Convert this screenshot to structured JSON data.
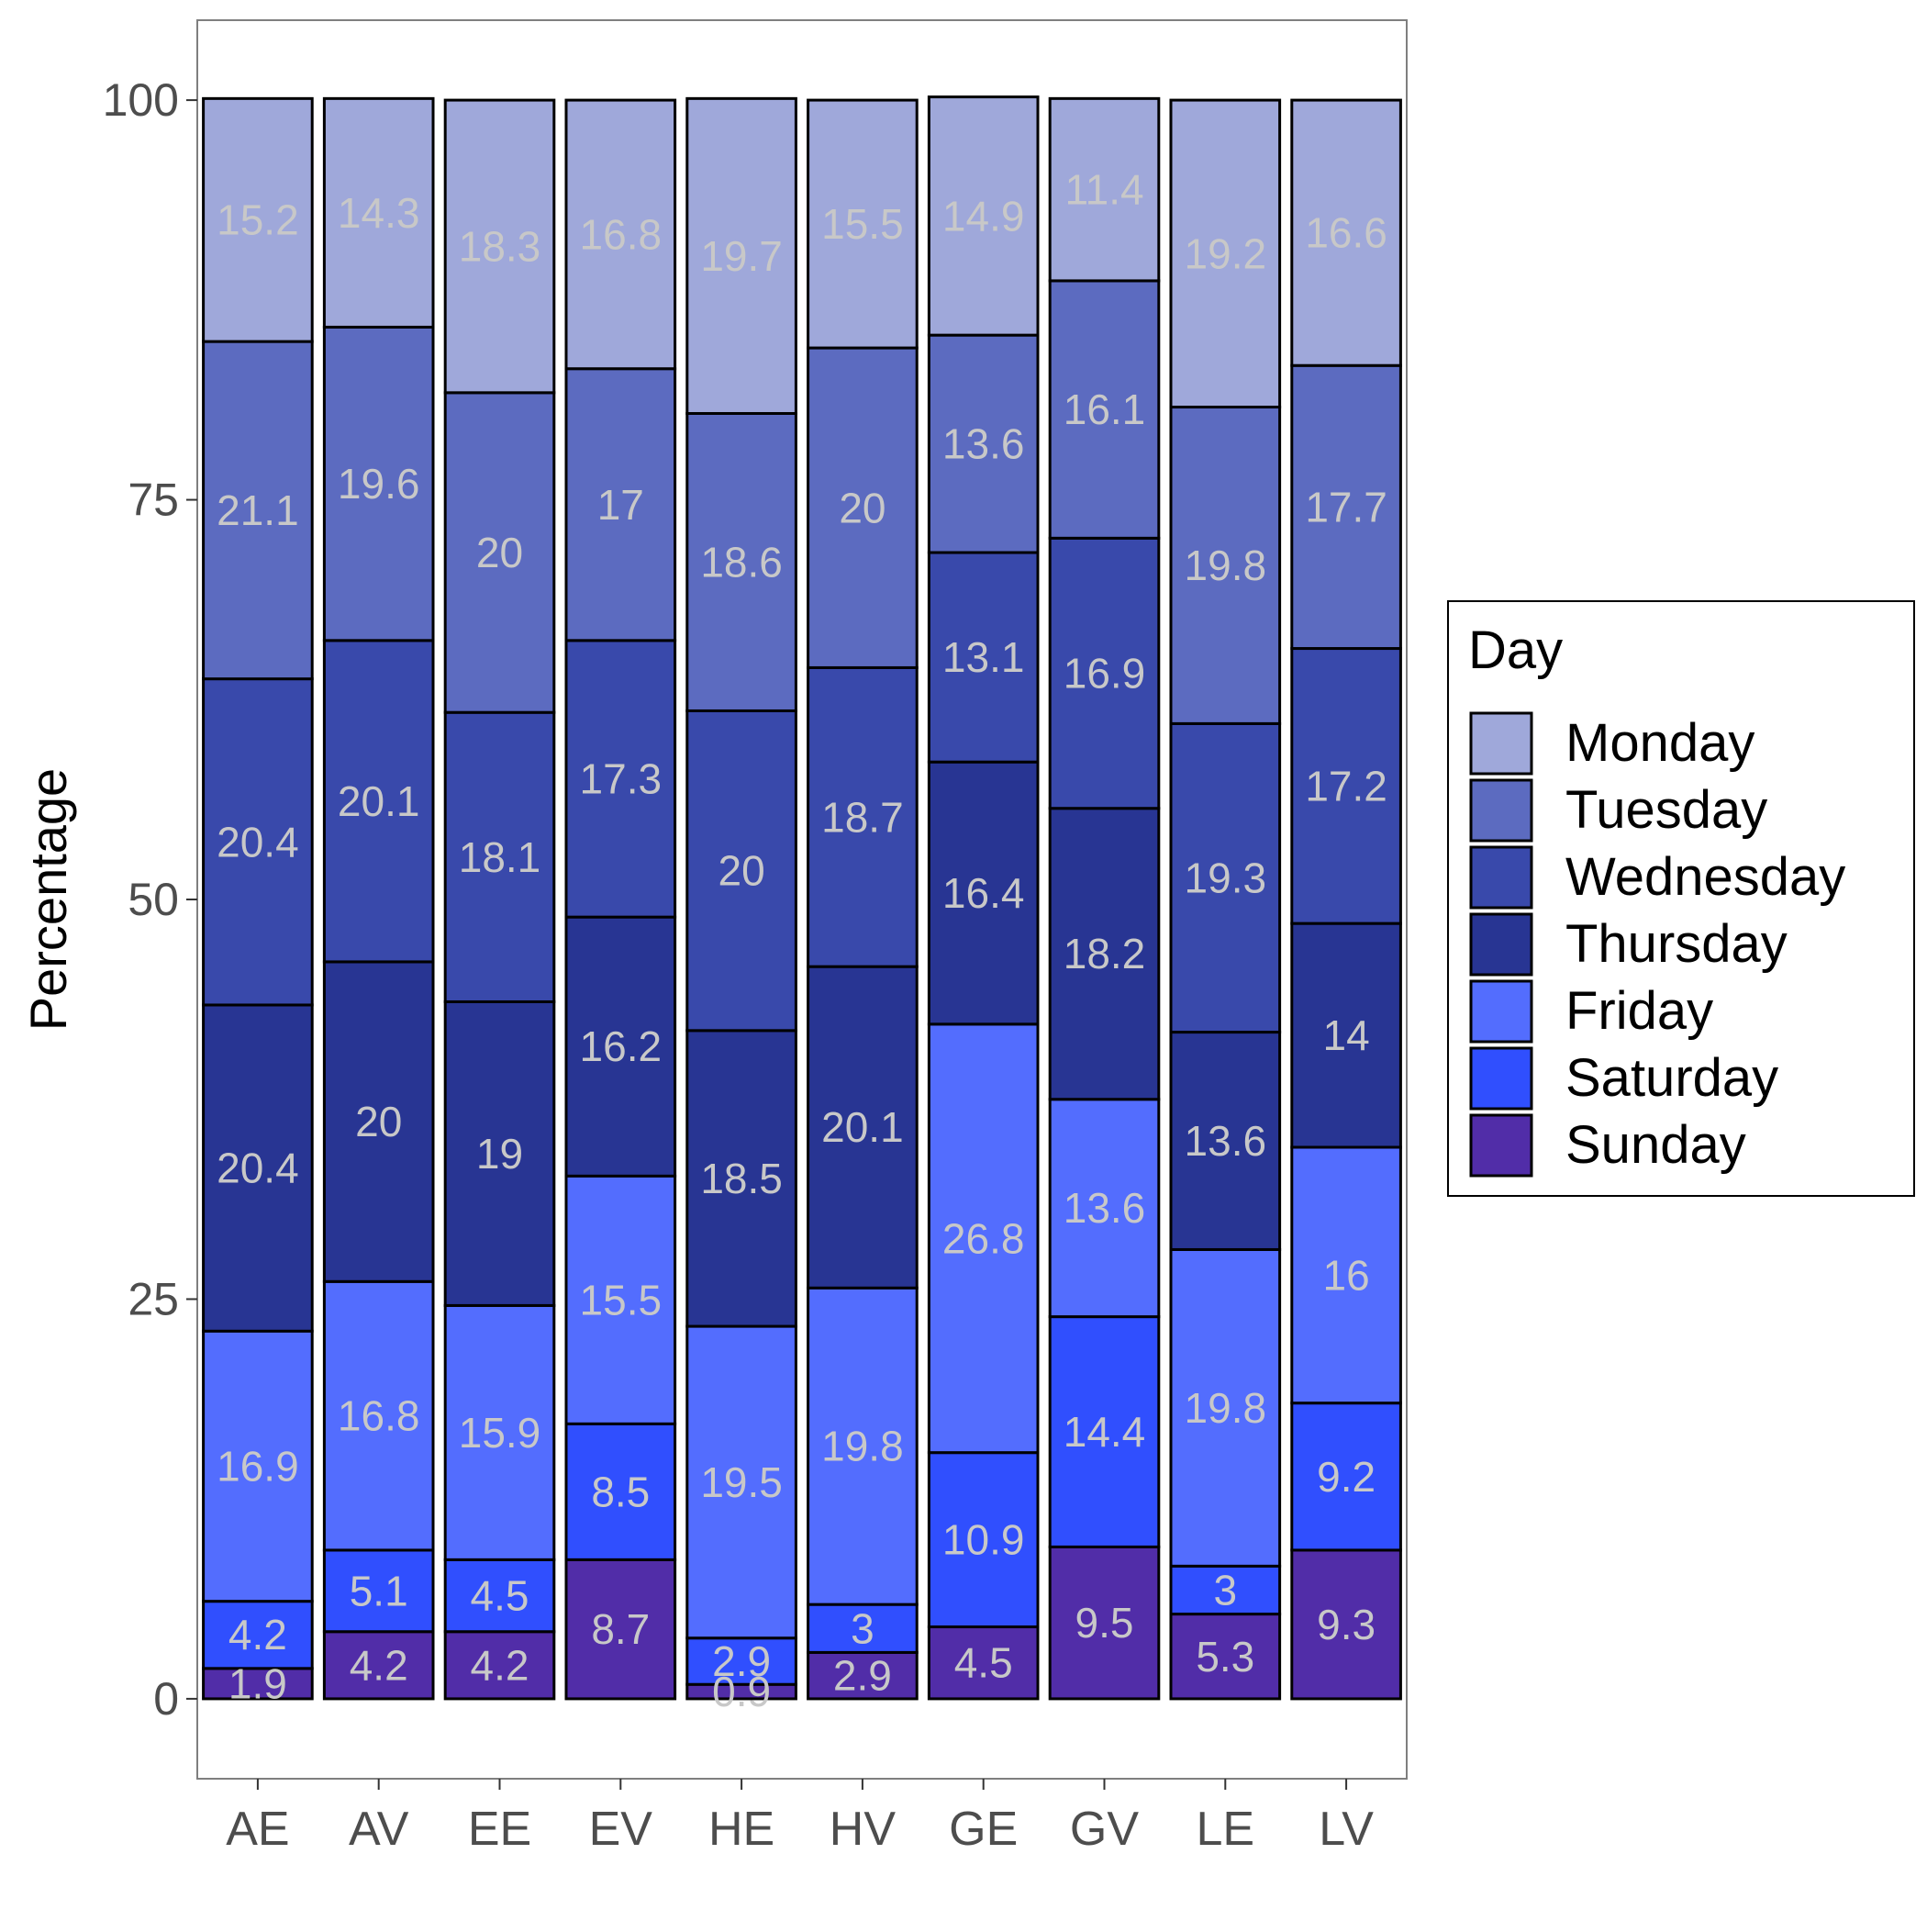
{
  "chart_data": {
    "type": "bar",
    "stacked": true,
    "ylabel": "Percentage",
    "xlabel": "",
    "ylim": [
      -5,
      105
    ],
    "yticks": [
      0,
      25,
      50,
      75,
      100
    ],
    "grid": false,
    "legend": {
      "title": "Day",
      "position": "right"
    },
    "categories": [
      "AE",
      "AV",
      "EE",
      "EV",
      "HE",
      "HV",
      "GE",
      "GV",
      "LE",
      "LV"
    ],
    "series": [
      {
        "name": "Sunday",
        "color": "#512DA8",
        "values": [
          1.9,
          4.2,
          4.2,
          8.7,
          0.9,
          2.9,
          4.5,
          9.5,
          5.3,
          9.3
        ]
      },
      {
        "name": "Saturday",
        "color": "#304FFE",
        "values": [
          4.2,
          5.1,
          4.5,
          8.5,
          2.9,
          3.0,
          10.9,
          14.4,
          3.0,
          9.2
        ]
      },
      {
        "name": "Friday",
        "color": "#536DFE",
        "values": [
          16.9,
          16.8,
          15.9,
          15.5,
          19.5,
          19.8,
          26.8,
          13.6,
          19.8,
          16.0
        ]
      },
      {
        "name": "Thursday",
        "color": "#283593",
        "values": [
          20.4,
          20.0,
          19.0,
          16.2,
          18.5,
          20.1,
          16.4,
          18.2,
          13.6,
          14.0
        ]
      },
      {
        "name": "Wednesday",
        "color": "#3949AB",
        "values": [
          20.4,
          20.1,
          18.1,
          17.3,
          20.0,
          18.7,
          13.1,
          16.9,
          19.3,
          17.2
        ]
      },
      {
        "name": "Tuesday",
        "color": "#5C6BC0",
        "values": [
          21.1,
          19.6,
          20.0,
          17.0,
          18.6,
          20.0,
          13.6,
          16.1,
          19.8,
          17.7
        ]
      },
      {
        "name": "Monday",
        "color": "#9FA8DA",
        "values": [
          15.2,
          14.3,
          18.3,
          16.8,
          19.7,
          15.5,
          14.9,
          11.4,
          19.2,
          16.6
        ]
      }
    ],
    "legend_order": [
      "Monday",
      "Tuesday",
      "Wednesday",
      "Thursday",
      "Friday",
      "Saturday",
      "Sunday"
    ],
    "label_color": "#C8C8C8"
  }
}
